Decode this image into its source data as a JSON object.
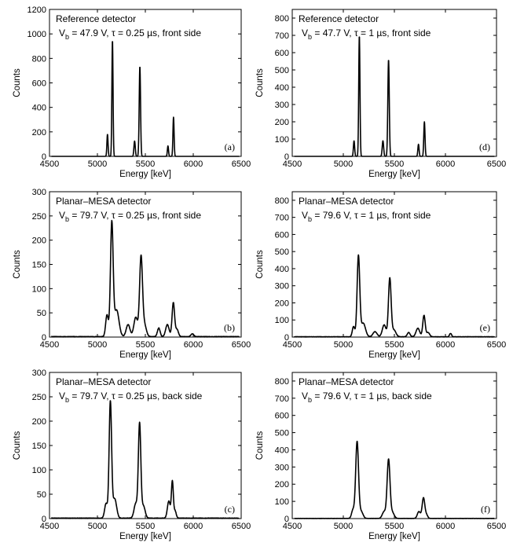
{
  "figure": {
    "background": "#ffffff",
    "line_color": "#000000"
  },
  "chart_data": [
    {
      "id": "a",
      "type": "line",
      "tag": "(a)",
      "title_line1": "Reference detector",
      "bias_label": "V",
      "bias_sub": "b",
      "bias_value": " = 47.9 V, τ = 0.25 µs, front side",
      "xlabel": "Energy [keV]",
      "ylabel": "Counts",
      "xlim": [
        4500,
        6500
      ],
      "ylim": [
        0,
        1200
      ],
      "xticks": [
        4500,
        5000,
        5500,
        6000,
        6500
      ],
      "yticks": [
        0,
        200,
        400,
        600,
        800,
        1000,
        1200
      ],
      "baseline": 0,
      "peaks": [
        {
          "x": 5105,
          "y": 180,
          "w": 6
        },
        {
          "x": 5157,
          "y": 950,
          "w": 6
        },
        {
          "x": 5388,
          "y": 125,
          "w": 7
        },
        {
          "x": 5443,
          "y": 735,
          "w": 7
        },
        {
          "x": 5736,
          "y": 85,
          "w": 6
        },
        {
          "x": 5794,
          "y": 320,
          "w": 6
        }
      ]
    },
    {
      "id": "d",
      "type": "line",
      "tag": "(d)",
      "title_line1": "Reference detector",
      "bias_label": "V",
      "bias_sub": "b",
      "bias_value": " = 47.7 V, τ = 1 µs, front side",
      "xlabel": "Energy [keV]",
      "ylabel": "Counts",
      "xlim": [
        4500,
        6500
      ],
      "ylim": [
        0,
        850
      ],
      "xticks": [
        4500,
        5000,
        5500,
        6000,
        6500
      ],
      "yticks": [
        0,
        100,
        200,
        300,
        400,
        500,
        600,
        700,
        800
      ],
      "baseline": 0,
      "peaks": [
        {
          "x": 5105,
          "y": 90,
          "w": 6
        },
        {
          "x": 5157,
          "y": 700,
          "w": 6
        },
        {
          "x": 5388,
          "y": 90,
          "w": 7
        },
        {
          "x": 5443,
          "y": 560,
          "w": 7
        },
        {
          "x": 5736,
          "y": 70,
          "w": 6
        },
        {
          "x": 5794,
          "y": 200,
          "w": 6
        }
      ]
    },
    {
      "id": "b",
      "type": "line",
      "tag": "(b)",
      "title_line1": "Planar–MESA detector",
      "bias_label": "V",
      "bias_sub": "b",
      "bias_value": " = 79.7 V, τ = 0.25 µs, front side",
      "xlabel": "Energy [keV]",
      "ylabel": "Counts",
      "xlim": [
        4500,
        6500
      ],
      "ylim": [
        0,
        300
      ],
      "xticks": [
        4500,
        5000,
        5500,
        6000,
        6500
      ],
      "yticks": [
        0,
        50,
        100,
        150,
        200,
        250,
        300
      ],
      "baseline": 1,
      "peaks": [
        {
          "x": 5100,
          "y": 45,
          "w": 14
        },
        {
          "x": 5150,
          "y": 232,
          "w": 14
        },
        {
          "x": 5200,
          "y": 55,
          "w": 25
        },
        {
          "x": 5320,
          "y": 25,
          "w": 20
        },
        {
          "x": 5400,
          "y": 40,
          "w": 20
        },
        {
          "x": 5455,
          "y": 162,
          "w": 15
        },
        {
          "x": 5490,
          "y": 25,
          "w": 20
        },
        {
          "x": 5640,
          "y": 18,
          "w": 14
        },
        {
          "x": 5730,
          "y": 25,
          "w": 18
        },
        {
          "x": 5792,
          "y": 70,
          "w": 13
        },
        {
          "x": 5830,
          "y": 15,
          "w": 15
        },
        {
          "x": 5990,
          "y": 6,
          "w": 15
        }
      ]
    },
    {
      "id": "e",
      "type": "line",
      "tag": "(e)",
      "title_line1": "Planar–MESA detector",
      "bias_label": "V",
      "bias_sub": "b",
      "bias_value": " = 79.6 V, τ = 1 µs, front side",
      "xlabel": "Energy [keV]",
      "ylabel": "Counts",
      "xlim": [
        4500,
        6500
      ],
      "ylim": [
        0,
        850
      ],
      "xticks": [
        4500,
        5000,
        5500,
        6000,
        6500
      ],
      "yticks": [
        0,
        100,
        200,
        300,
        400,
        500,
        600,
        700,
        800
      ],
      "baseline": 2,
      "peaks": [
        {
          "x": 5100,
          "y": 60,
          "w": 12
        },
        {
          "x": 5148,
          "y": 470,
          "w": 13
        },
        {
          "x": 5195,
          "y": 80,
          "w": 22
        },
        {
          "x": 5310,
          "y": 30,
          "w": 20
        },
        {
          "x": 5400,
          "y": 70,
          "w": 18
        },
        {
          "x": 5455,
          "y": 340,
          "w": 13
        },
        {
          "x": 5495,
          "y": 40,
          "w": 20
        },
        {
          "x": 5640,
          "y": 25,
          "w": 14
        },
        {
          "x": 5730,
          "y": 50,
          "w": 18
        },
        {
          "x": 5790,
          "y": 125,
          "w": 12
        },
        {
          "x": 5830,
          "y": 25,
          "w": 15
        },
        {
          "x": 6050,
          "y": 20,
          "w": 10
        }
      ]
    },
    {
      "id": "c",
      "type": "line",
      "tag": "(c)",
      "title_line1": "Planar–MESA detector",
      "bias_label": "V",
      "bias_sub": "b",
      "bias_value": " = 79.7 V, τ = 0.25 µs, back side",
      "xlabel": "Energy [keV]",
      "ylabel": "Counts",
      "xlim": [
        4500,
        6500
      ],
      "ylim": [
        0,
        300
      ],
      "xticks": [
        4500,
        5000,
        5500,
        6000,
        6500
      ],
      "yticks": [
        0,
        50,
        100,
        150,
        200,
        250,
        300
      ],
      "baseline": 1,
      "peaks": [
        {
          "x": 5090,
          "y": 30,
          "w": 15
        },
        {
          "x": 5135,
          "y": 238,
          "w": 13
        },
        {
          "x": 5180,
          "y": 40,
          "w": 20
        },
        {
          "x": 5400,
          "y": 30,
          "w": 18
        },
        {
          "x": 5440,
          "y": 192,
          "w": 13
        },
        {
          "x": 5480,
          "y": 25,
          "w": 18
        },
        {
          "x": 5745,
          "y": 35,
          "w": 15
        },
        {
          "x": 5782,
          "y": 75,
          "w": 10
        },
        {
          "x": 5810,
          "y": 15,
          "w": 12
        }
      ]
    },
    {
      "id": "f",
      "type": "line",
      "tag": "(f)",
      "title_line1": "Planar–MESA detector",
      "bias_label": "V",
      "bias_sub": "b",
      "bias_value": " = 79.6 V, τ = 1 µs, back side",
      "xlabel": "Energy [keV]",
      "ylabel": "Counts",
      "xlim": [
        4500,
        6500
      ],
      "ylim": [
        0,
        850
      ],
      "xticks": [
        4500,
        5000,
        5500,
        6000,
        6500
      ],
      "yticks": [
        0,
        100,
        200,
        300,
        400,
        500,
        600,
        700,
        800
      ],
      "baseline": 1,
      "peaks": [
        {
          "x": 5095,
          "y": 50,
          "w": 14
        },
        {
          "x": 5135,
          "y": 445,
          "w": 14
        },
        {
          "x": 5175,
          "y": 40,
          "w": 18
        },
        {
          "x": 5400,
          "y": 40,
          "w": 18
        },
        {
          "x": 5443,
          "y": 340,
          "w": 14
        },
        {
          "x": 5480,
          "y": 35,
          "w": 18
        },
        {
          "x": 5740,
          "y": 40,
          "w": 15
        },
        {
          "x": 5785,
          "y": 120,
          "w": 13
        },
        {
          "x": 5815,
          "y": 20,
          "w": 12
        }
      ]
    }
  ]
}
